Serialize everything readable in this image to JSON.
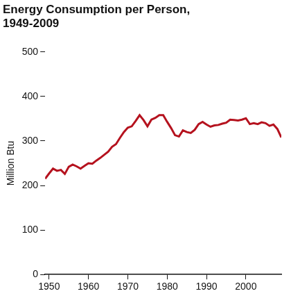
{
  "chart_data": {
    "type": "line",
    "title": "Energy Consumption per Person, 1949-2009",
    "y_label": "Million Btu",
    "x": [
      1949,
      1950,
      1951,
      1952,
      1953,
      1954,
      1955,
      1956,
      1957,
      1958,
      1959,
      1960,
      1961,
      1962,
      1963,
      1964,
      1965,
      1966,
      1967,
      1968,
      1969,
      1970,
      1971,
      1972,
      1973,
      1974,
      1975,
      1976,
      1977,
      1978,
      1979,
      1980,
      1981,
      1982,
      1983,
      1984,
      1985,
      1986,
      1987,
      1988,
      1989,
      1990,
      1991,
      1992,
      1993,
      1994,
      1995,
      1996,
      1997,
      1998,
      1999,
      2000,
      2001,
      2002,
      2003,
      2004,
      2005,
      2006,
      2007,
      2008,
      2009
    ],
    "values": [
      215,
      227,
      238,
      233,
      235,
      226,
      242,
      247,
      243,
      238,
      244,
      250,
      249,
      256,
      262,
      269,
      276,
      287,
      293,
      307,
      320,
      330,
      333,
      345,
      358,
      347,
      333,
      348,
      352,
      358,
      358,
      343,
      329,
      313,
      310,
      324,
      320,
      318,
      325,
      338,
      343,
      337,
      332,
      335,
      336,
      339,
      341,
      348,
      347,
      346,
      348,
      351,
      338,
      340,
      338,
      342,
      340,
      334,
      337,
      327,
      308
    ],
    "color": "#b5121e",
    "xlim": [
      1949,
      2009
    ],
    "xticks": [
      1950,
      1960,
      1970,
      1980,
      1990,
      2000
    ],
    "ylim": [
      0,
      500
    ],
    "yticks": [
      0,
      100,
      200,
      300,
      400,
      500
    ],
    "grid": false
  }
}
